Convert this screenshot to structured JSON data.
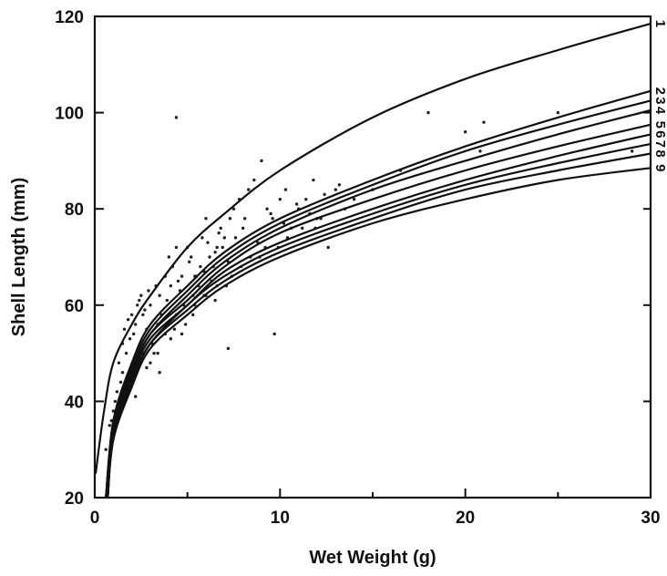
{
  "chart_data": {
    "type": "line",
    "title": "",
    "xlabel": "Wet Weight (g)",
    "ylabel": "Shell Length (mm)",
    "xlim": [
      0,
      30
    ],
    "ylim": [
      20,
      120
    ],
    "x_ticks": [
      0,
      10,
      20,
      30
    ],
    "x_tick_labels": [
      "0",
      "10",
      "20",
      "30"
    ],
    "y_ticks": [
      20,
      40,
      60,
      80,
      100,
      120
    ],
    "y_tick_labels": [
      "20",
      "40",
      "60",
      "80",
      "100",
      "120"
    ],
    "grid": false,
    "legend": "none",
    "curve_labels_position": "right-edge",
    "series": [
      {
        "label": "1",
        "x": [
          0.05,
          0.5,
          1,
          2,
          3,
          5,
          7,
          10,
          15,
          20,
          25,
          30
        ],
        "y": [
          25,
          38,
          48,
          56,
          62,
          72,
          79,
          88,
          99,
          107,
          113,
          118.5
        ]
      },
      {
        "label": "2",
        "x": [
          0.6,
          1,
          2,
          3,
          5,
          7,
          10,
          15,
          20,
          25,
          30
        ],
        "y": [
          20,
          36,
          48,
          56,
          64,
          71,
          78,
          86,
          93,
          99,
          104.5
        ]
      },
      {
        "label": "3",
        "x": [
          0.6,
          1,
          2,
          3,
          5,
          7,
          10,
          15,
          20,
          25,
          30
        ],
        "y": [
          20,
          35,
          47,
          55,
          63,
          70,
          77,
          85,
          92,
          97.5,
          102.5
        ]
      },
      {
        "label": "4",
        "x": [
          0.6,
          1,
          2,
          3,
          5,
          7,
          10,
          15,
          20,
          25,
          30
        ],
        "y": [
          20,
          35,
          46,
          54,
          62,
          69,
          76,
          84,
          90,
          95.5,
          100.5
        ]
      },
      {
        "label": "5",
        "x": [
          0.6,
          1,
          2,
          3,
          5,
          7,
          10,
          15,
          20,
          25,
          30
        ],
        "y": [
          20,
          34,
          46,
          54,
          61,
          68,
          75,
          82,
          88,
          93,
          97.5
        ]
      },
      {
        "label": "6",
        "x": [
          0.7,
          1,
          2,
          3,
          5,
          7,
          10,
          15,
          20,
          25,
          30
        ],
        "y": [
          20,
          33,
          45,
          53,
          60,
          67,
          73,
          80,
          86,
          91,
          95.5
        ]
      },
      {
        "label": "7",
        "x": [
          0.7,
          1,
          2,
          3,
          5,
          7,
          10,
          15,
          20,
          25,
          30
        ],
        "y": [
          20,
          33,
          44,
          52,
          60,
          66,
          72,
          79,
          85,
          89.5,
          93.5
        ]
      },
      {
        "label": "8",
        "x": [
          0.7,
          1,
          2,
          3,
          5,
          7,
          10,
          15,
          20,
          25,
          30
        ],
        "y": [
          20,
          32,
          44,
          52,
          59,
          65,
          71,
          78,
          84,
          88,
          91.5
        ]
      },
      {
        "label": "9",
        "x": [
          0.7,
          1,
          2,
          3,
          5,
          7,
          10,
          15,
          20,
          25,
          30
        ],
        "y": [
          20,
          32,
          43,
          51,
          58,
          64,
          70,
          77,
          82,
          86,
          88.5
        ]
      }
    ],
    "scatter": {
      "x": [
        0.6,
        0.8,
        1.0,
        1.2,
        1.3,
        1.5,
        1.6,
        1.8,
        2.0,
        2.1,
        2.3,
        2.5,
        2.6,
        2.8,
        3.0,
        3.1,
        3.3,
        3.5,
        3.6,
        3.8,
        4.0,
        4.2,
        4.4,
        4.5,
        4.7,
        5.0,
        5.2,
        5.4,
        5.6,
        5.8,
        6.0,
        6.2,
        6.4,
        6.6,
        6.8,
        7.0,
        7.3,
        7.5,
        7.8,
        8.0,
        8.3,
        8.6,
        9.0,
        9.3,
        9.6,
        10.0,
        10.3,
        10.6,
        11.0,
        11.4,
        11.8,
        12.2,
        12.6,
        13.0,
        13.5,
        14.0,
        15.0,
        16.5,
        18.0,
        20.0,
        21.0,
        25.0,
        29.0,
        1.1,
        1.4,
        1.7,
        1.9,
        2.2,
        2.4,
        2.7,
        2.9,
        3.2,
        3.4,
        3.7,
        3.9,
        4.1,
        4.3,
        4.6,
        4.8,
        5.1,
        5.3,
        5.5,
        5.7,
        5.9,
        6.1,
        6.3,
        6.5,
        6.7,
        6.9,
        7.2,
        7.6,
        8.1,
        8.8,
        9.5,
        10.2,
        10.9,
        11.6,
        12.4,
        13.2,
        2.0,
        2.6,
        3.0,
        3.4,
        3.8,
        4.4,
        4.9,
        5.4,
        6.0,
        6.6,
        7.4,
        8.4,
        9.2,
        10.4,
        11.2,
        12.0,
        0.9,
        1.5,
        2.2,
        2.8,
        3.5,
        4.1,
        4.7,
        5.3,
        5.9,
        6.5,
        7.1,
        7.9,
        8.9,
        9.9,
        11.9,
        20.8,
        4.4,
        7.2,
        9.7
      ],
      "y": [
        30,
        35,
        38,
        42,
        48,
        52,
        55,
        57,
        58,
        54,
        60,
        62,
        58,
        55,
        60,
        52,
        64,
        62,
        58,
        66,
        70,
        68,
        72,
        65,
        66,
        72,
        70,
        66,
        64,
        74,
        78,
        70,
        68,
        72,
        76,
        74,
        78,
        80,
        82,
        76,
        84,
        86,
        90,
        80,
        78,
        82,
        84,
        76,
        80,
        82,
        86,
        78,
        72,
        84,
        80,
        82,
        84,
        88,
        100,
        96,
        98,
        100,
        92,
        40,
        44,
        50,
        53,
        56,
        61,
        59,
        63,
        50,
        56,
        57,
        61,
        64,
        55,
        63,
        60,
        69,
        62,
        66,
        68,
        67,
        73,
        65,
        71,
        75,
        72,
        69,
        74,
        78,
        73,
        79,
        77,
        81,
        79,
        83,
        85,
        46,
        50,
        48,
        50,
        54,
        58,
        56,
        60,
        62,
        64,
        66,
        70,
        72,
        74,
        76,
        78,
        36,
        46,
        41,
        47,
        46,
        53,
        54,
        58,
        62,
        61,
        64,
        68,
        70,
        72,
        76,
        92,
        99,
        51,
        54
      ]
    }
  }
}
